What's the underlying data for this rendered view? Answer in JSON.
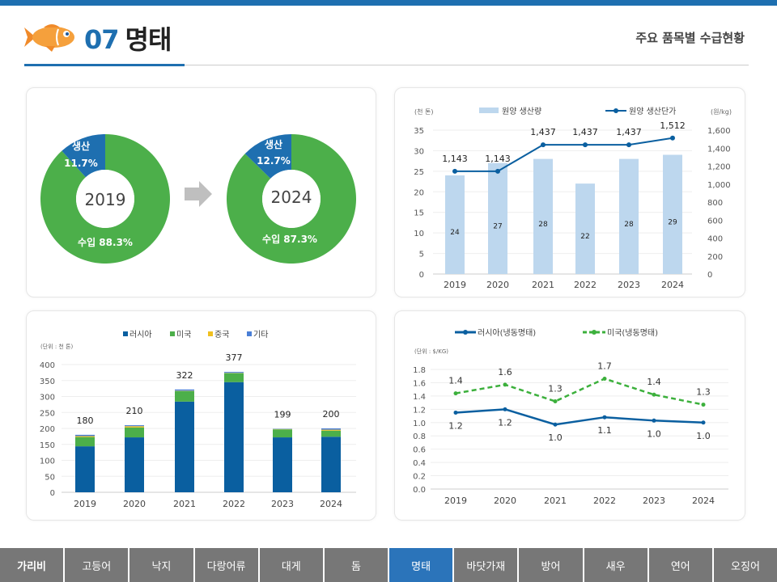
{
  "header": {
    "number": "07",
    "title": "명태",
    "subtitle": "주요 품목별 수급현황"
  },
  "colors": {
    "accent": "#1e6fb0",
    "import_green": "#4caf4a",
    "production_blue": "#1e6fb0",
    "bar_light": "#bdd7ee",
    "russia": "#0a5fa0",
    "usa": "#4caf4a",
    "china": "#f0c020",
    "other": "#4a7fd6",
    "nav_bg": "#777777",
    "nav_active": "#2b74ba"
  },
  "donuts": [
    {
      "year": "2019",
      "production_label": "생산",
      "production_pct": "11.7%",
      "production_value": 11.7,
      "import_label": "수입 88.3%",
      "import_value": 88.3
    },
    {
      "year": "2024",
      "production_label": "생산",
      "production_pct": "12.7%",
      "production_value": 12.7,
      "import_label": "수입 87.3%",
      "import_value": 87.3
    }
  ],
  "arrow_icon": "arrow-right-icon",
  "chart_data": [
    {
      "type": "bar+line",
      "left_unit": "(천 톤)",
      "right_unit": "(원/kg)",
      "categories": [
        "2019",
        "2020",
        "2021",
        "2022",
        "2023",
        "2024"
      ],
      "series": [
        {
          "name": "원양 생산량",
          "type": "bar",
          "axis": "left",
          "values": [
            24,
            27,
            28,
            22,
            28,
            29
          ],
          "labels": [
            "24",
            "27",
            "28",
            "22",
            "28",
            "29"
          ]
        },
        {
          "name": "원양 생산단가",
          "type": "line",
          "axis": "right",
          "values": [
            1143,
            1143,
            1437,
            1437,
            1437,
            1512
          ],
          "labels": [
            "1,143",
            "1,143",
            "1,437",
            "1,437",
            "1,437",
            "1,512"
          ]
        }
      ],
      "ylim": [
        0,
        35
      ],
      "yticks": [
        "0",
        "5",
        "10",
        "15",
        "20",
        "25",
        "30",
        "35"
      ],
      "y2lim": [
        0,
        1600
      ],
      "y2ticks": [
        "0",
        "200",
        "400",
        "600",
        "800",
        "1,000",
        "1,200",
        "1,400",
        "1,600"
      ],
      "legend": "top",
      "grid": true
    },
    {
      "type": "stacked-bar",
      "unit": "(단위 : 천 톤)",
      "categories": [
        "2019",
        "2020",
        "2021",
        "2022",
        "2023",
        "2024"
      ],
      "series": [
        {
          "name": "러시아",
          "values": [
            144,
            172,
            284,
            345,
            172,
            174
          ]
        },
        {
          "name": "미국",
          "values": [
            29,
            31,
            33,
            28,
            25,
            19
          ]
        },
        {
          "name": "중국",
          "values": [
            3,
            4,
            1,
            1,
            1,
            3
          ]
        },
        {
          "name": "기타",
          "values": [
            4,
            3,
            4,
            3,
            1,
            4
          ]
        }
      ],
      "totals": [
        "180",
        "210",
        "322",
        "377",
        "199",
        "200"
      ],
      "ylim": [
        0,
        400
      ],
      "yticks": [
        "0",
        "50",
        "100",
        "150",
        "200",
        "250",
        "300",
        "350",
        "400"
      ],
      "legend": "top",
      "grid": true
    },
    {
      "type": "line",
      "unit": "(단위 : $/KG)",
      "categories": [
        "2019",
        "2020",
        "2021",
        "2022",
        "2023",
        "2024"
      ],
      "series": [
        {
          "name": "러시아(냉동명태)",
          "values": [
            1.15,
            1.2,
            0.97,
            1.08,
            1.03,
            1.0
          ],
          "labels": [
            "1.2",
            "1.2",
            "1.0",
            "1.1",
            "1.0",
            "1.0"
          ]
        },
        {
          "name": "미국(냉동명태)",
          "values": [
            1.44,
            1.57,
            1.32,
            1.66,
            1.42,
            1.27
          ],
          "labels": [
            "1.4",
            "1.6",
            "1.3",
            "1.7",
            "1.4",
            "1.3"
          ]
        }
      ],
      "ylim": [
        0,
        1.8
      ],
      "yticks": [
        "0.0",
        "0.2",
        "0.4",
        "0.6",
        "0.8",
        "1.0",
        "1.2",
        "1.4",
        "1.6",
        "1.8"
      ],
      "legend": "top",
      "grid": true
    }
  ],
  "nav": {
    "items": [
      "가리비",
      "고등어",
      "낙지",
      "다랑어류",
      "대게",
      "돔",
      "명태",
      "바닷가재",
      "방어",
      "새우",
      "연어",
      "오징어"
    ],
    "active": "명태"
  }
}
